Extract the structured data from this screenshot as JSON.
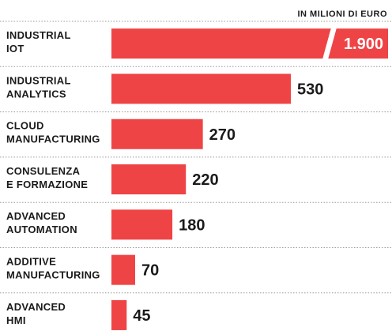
{
  "chart_data": {
    "type": "bar",
    "orientation": "horizontal",
    "unit_label": "IN MILIONI DI EURO",
    "bar_color": "#ee4446",
    "categories": [
      [
        "INDUSTRIAL",
        "IOT"
      ],
      [
        "INDUSTRIAL",
        "ANALYTICS"
      ],
      [
        "CLOUD",
        "MANUFACTURING"
      ],
      [
        "CONSULENZA",
        "E FORMAZIONE"
      ],
      [
        "ADVANCED",
        "AUTOMATION"
      ],
      [
        "ADDITIVE",
        "MANUFACTURING"
      ],
      [
        "ADVANCED",
        "HMI"
      ]
    ],
    "values": [
      1900,
      530,
      270,
      220,
      180,
      70,
      45
    ],
    "value_labels": [
      "1.900",
      "530",
      "270",
      "220",
      "180",
      "70",
      "45"
    ],
    "broken_bars": [
      0
    ],
    "grid": false
  }
}
